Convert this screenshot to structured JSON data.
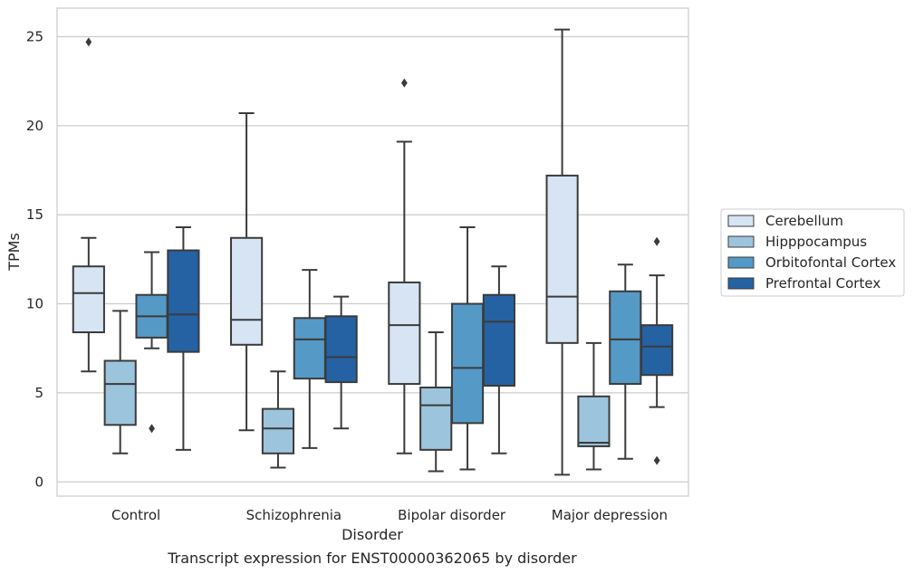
{
  "caption": "Transcript expression for ENST00000362065 by disorder",
  "chart_data": {
    "type": "boxplot",
    "title": "",
    "xlabel": "Disorder",
    "ylabel": "TPMs",
    "ylim": [
      -0.8,
      26.6
    ],
    "yticks": [
      0,
      5,
      10,
      15,
      20,
      25
    ],
    "grid": true,
    "legend_position": "right",
    "categories": [
      "Control",
      "Schizophrenia",
      "Bipolar disorder",
      "Major depression"
    ],
    "series": [
      {
        "name": "Cerebellum",
        "color": "#d6e4f3",
        "boxes": [
          {
            "whislo": 6.2,
            "q1": 8.4,
            "med": 10.6,
            "q3": 12.1,
            "whishi": 13.7,
            "fliers": [
              24.7
            ]
          },
          {
            "whislo": 2.9,
            "q1": 7.7,
            "med": 9.1,
            "q3": 13.7,
            "whishi": 20.7,
            "fliers": []
          },
          {
            "whislo": 1.6,
            "q1": 5.5,
            "med": 8.8,
            "q3": 11.2,
            "whishi": 19.1,
            "fliers": [
              22.4
            ]
          },
          {
            "whislo": 0.4,
            "q1": 7.8,
            "med": 10.4,
            "q3": 17.2,
            "whishi": 25.4,
            "fliers": []
          }
        ]
      },
      {
        "name": "Hipppocampus",
        "color": "#9dc4dd",
        "boxes": [
          {
            "whislo": 1.6,
            "q1": 3.2,
            "med": 5.5,
            "q3": 6.8,
            "whishi": 9.6,
            "fliers": []
          },
          {
            "whislo": 0.8,
            "q1": 1.6,
            "med": 3.0,
            "q3": 4.1,
            "whishi": 6.2,
            "fliers": []
          },
          {
            "whislo": 0.6,
            "q1": 1.8,
            "med": 4.3,
            "q3": 5.3,
            "whishi": 8.4,
            "fliers": []
          },
          {
            "whislo": 0.7,
            "q1": 2.0,
            "med": 2.2,
            "q3": 4.8,
            "whishi": 7.8,
            "fliers": []
          }
        ]
      },
      {
        "name": "Orbitofontal Cortex",
        "color": "#5599c6",
        "boxes": [
          {
            "whislo": 7.5,
            "q1": 8.1,
            "med": 9.3,
            "q3": 10.5,
            "whishi": 12.9,
            "fliers": [
              3.0
            ]
          },
          {
            "whislo": 1.9,
            "q1": 5.8,
            "med": 8.0,
            "q3": 9.2,
            "whishi": 11.9,
            "fliers": []
          },
          {
            "whislo": 0.7,
            "q1": 3.3,
            "med": 6.4,
            "q3": 10.0,
            "whishi": 14.3,
            "fliers": []
          },
          {
            "whislo": 1.3,
            "q1": 5.5,
            "med": 8.0,
            "q3": 10.7,
            "whishi": 12.2,
            "fliers": []
          }
        ]
      },
      {
        "name": "Prefrontal Cortex",
        "color": "#2562a3",
        "boxes": [
          {
            "whislo": 1.8,
            "q1": 7.3,
            "med": 9.4,
            "q3": 13.0,
            "whishi": 14.3,
            "fliers": []
          },
          {
            "whislo": 3.0,
            "q1": 5.6,
            "med": 7.0,
            "q3": 9.3,
            "whishi": 10.4,
            "fliers": []
          },
          {
            "whislo": 1.6,
            "q1": 5.4,
            "med": 9.0,
            "q3": 10.5,
            "whishi": 12.1,
            "fliers": []
          },
          {
            "whislo": 4.2,
            "q1": 6.0,
            "med": 7.6,
            "q3": 8.8,
            "whishi": 11.6,
            "fliers": [
              1.2,
              13.5
            ]
          }
        ]
      }
    ]
  }
}
